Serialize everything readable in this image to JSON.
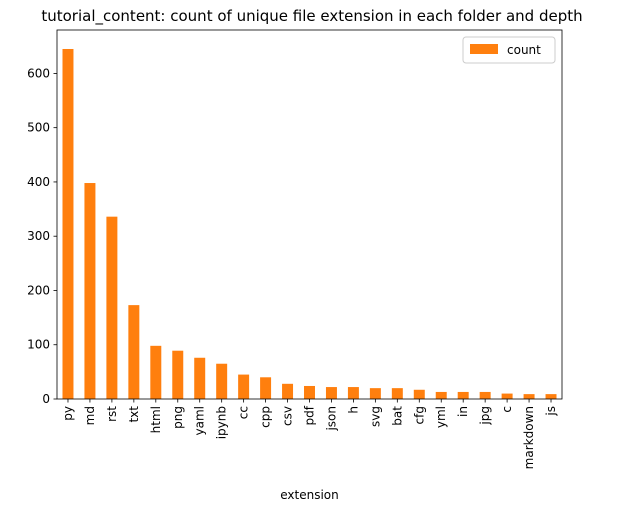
{
  "chart_data": {
    "type": "bar",
    "title": "tutorial_content: count of unique file extension in each folder and depth",
    "xlabel": "extension",
    "ylabel": "",
    "ylim": [
      0,
      680
    ],
    "yticks": [
      0,
      100,
      200,
      300,
      400,
      500,
      600
    ],
    "grid": false,
    "legend_placement": "top-right",
    "categories": [
      "py",
      "md",
      "rst",
      "txt",
      "html",
      "png",
      "yaml",
      "ipynb",
      "cc",
      "cpp",
      "csv",
      "pdf",
      "json",
      "h",
      "svg",
      "bat",
      "cfg",
      "yml",
      "in",
      "jpg",
      "c",
      "markdown",
      "js"
    ],
    "series": [
      {
        "name": "count",
        "color": "#ff7f0e",
        "values": [
          645,
          398,
          336,
          173,
          98,
          89,
          76,
          65,
          45,
          40,
          28,
          24,
          22,
          22,
          20,
          20,
          17,
          13,
          13,
          13,
          10,
          9,
          9
        ]
      }
    ]
  }
}
